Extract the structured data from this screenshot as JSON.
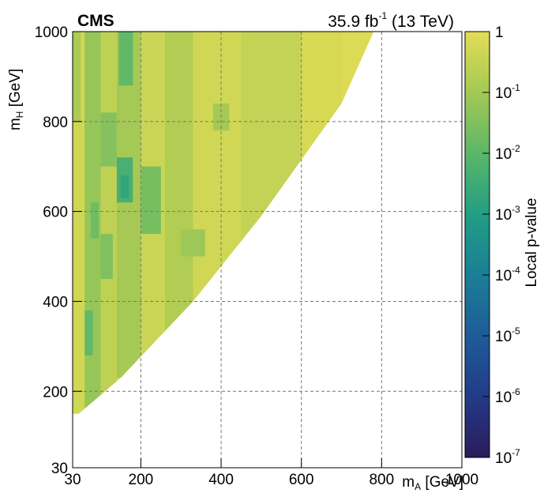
{
  "chart_data": {
    "type": "heatmap",
    "experiment_label": "CMS",
    "luminosity_label": {
      "value": "35.9",
      "unit_base": "fb",
      "unit_exponent": "-1",
      "energy": "(13 TeV)"
    },
    "xlabel": {
      "main": "m",
      "sub": "A",
      "unit": "[GeV]"
    },
    "ylabel": {
      "main": "m",
      "sub": "H",
      "unit": "[GeV]"
    },
    "xlim": [
      30,
      1000
    ],
    "ylim": [
      30,
      1000
    ],
    "x_ticks": [
      30,
      200,
      400,
      600,
      800,
      1000
    ],
    "y_ticks": [
      30,
      200,
      400,
      600,
      800,
      1000
    ],
    "grid": true,
    "colorbar": {
      "label": "Local p-value",
      "scale": "log",
      "range": [
        1e-07,
        1
      ],
      "ticks": [
        {
          "value": 1,
          "base": "1",
          "exp": ""
        },
        {
          "value": 0.1,
          "base": "10",
          "exp": "-1"
        },
        {
          "value": 0.01,
          "base": "10",
          "exp": "-2"
        },
        {
          "value": 0.001,
          "base": "10",
          "exp": "-3"
        },
        {
          "value": 0.0001,
          "base": "10",
          "exp": "-4"
        },
        {
          "value": 1e-05,
          "base": "10",
          "exp": "-5"
        },
        {
          "value": 1e-06,
          "base": "10",
          "exp": "-6"
        },
        {
          "value": 1e-07,
          "base": "10",
          "exp": "-7"
        }
      ]
    },
    "region_boundary": [
      [
        30,
        150
      ],
      [
        30,
        1000
      ],
      [
        780,
        1000
      ],
      [
        700,
        840
      ],
      [
        500,
        590
      ],
      [
        330,
        400
      ],
      [
        150,
        230
      ],
      [
        45,
        150
      ]
    ],
    "cells": [
      {
        "x": [
          30,
          60
        ],
        "y": [
          150,
          1000
        ],
        "log10p": -0.3
      },
      {
        "x": [
          60,
          100
        ],
        "y": [
          150,
          1000
        ],
        "log10p": -1.2
      },
      {
        "x": [
          100,
          140
        ],
        "y": [
          150,
          1000
        ],
        "log10p": -0.6
      },
      {
        "x": [
          140,
          200
        ],
        "y": [
          230,
          1000
        ],
        "log10p": -1.0
      },
      {
        "x": [
          200,
          260
        ],
        "y": [
          280,
          1000
        ],
        "log10p": -0.4
      },
      {
        "x": [
          260,
          330
        ],
        "y": [
          330,
          1000
        ],
        "log10p": -0.8
      },
      {
        "x": [
          330,
          450
        ],
        "y": [
          400,
          1000
        ],
        "log10p": -0.3
      },
      {
        "x": [
          450,
          600
        ],
        "y": [
          530,
          1000
        ],
        "log10p": -0.5
      },
      {
        "x": [
          600,
          700
        ],
        "y": [
          680,
          1000
        ],
        "log10p": -0.2
      },
      {
        "x": [
          700,
          780
        ],
        "y": [
          840,
          1000
        ],
        "log10p": -0.1
      },
      {
        "x": [
          140,
          180
        ],
        "y": [
          620,
          720
        ],
        "log10p": -2.3
      },
      {
        "x": [
          150,
          170
        ],
        "y": [
          630,
          680
        ],
        "log10p": -2.7
      },
      {
        "x": [
          145,
          180
        ],
        "y": [
          880,
          1000
        ],
        "log10p": -1.9
      },
      {
        "x": [
          200,
          250
        ],
        "y": [
          550,
          700
        ],
        "log10p": -1.6
      },
      {
        "x": [
          60,
          80
        ],
        "y": [
          280,
          380
        ],
        "log10p": -1.9
      },
      {
        "x": [
          75,
          95
        ],
        "y": [
          540,
          620
        ],
        "log10p": -1.7
      },
      {
        "x": [
          100,
          130
        ],
        "y": [
          450,
          550
        ],
        "log10p": -1.5
      },
      {
        "x": [
          100,
          140
        ],
        "y": [
          700,
          820
        ],
        "log10p": -1.4
      },
      {
        "x": [
          380,
          420
        ],
        "y": [
          780,
          840
        ],
        "log10p": -1.0
      },
      {
        "x": [
          300,
          360
        ],
        "y": [
          500,
          560
        ],
        "log10p": -1.1
      },
      {
        "x": [
          30,
          50
        ],
        "y": [
          800,
          1000
        ],
        "log10p": -0.9
      }
    ]
  }
}
